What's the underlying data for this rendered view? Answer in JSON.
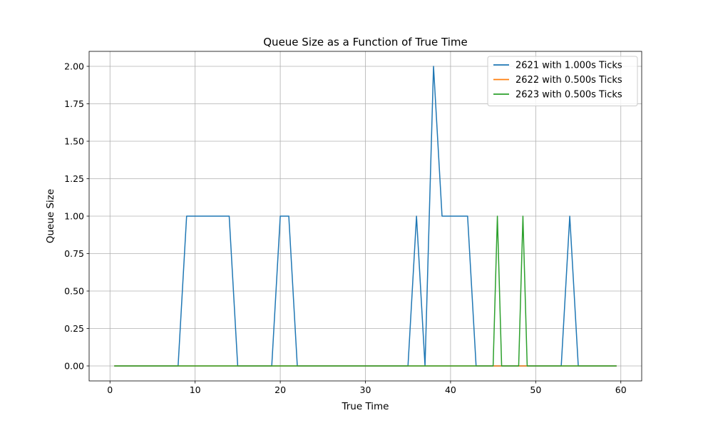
{
  "chart_data": {
    "type": "line",
    "title": "Queue Size as a Function of True Time",
    "xlabel": "True Time",
    "ylabel": "Queue Size",
    "xlim": [
      -2.45,
      62.45
    ],
    "ylim": [
      -0.1,
      2.1
    ],
    "xticks": [
      0,
      10,
      20,
      30,
      40,
      50,
      60
    ],
    "yticks": [
      0.0,
      0.25,
      0.5,
      0.75,
      1.0,
      1.25,
      1.5,
      1.75,
      2.0
    ],
    "xtick_labels": [
      "0",
      "10",
      "20",
      "30",
      "40",
      "50",
      "60"
    ],
    "ytick_labels": [
      "0.00",
      "0.25",
      "0.50",
      "0.75",
      "1.00",
      "1.25",
      "1.50",
      "1.75",
      "2.00"
    ],
    "grid": true,
    "legend_position": "top-right",
    "series": [
      {
        "name": "2621 with 1.000s Ticks",
        "color": "#1f77b4",
        "x": [
          0.5,
          8,
          9,
          14,
          15,
          19,
          20,
          21,
          22,
          35,
          36,
          37,
          38,
          39,
          42,
          43,
          53,
          54,
          55,
          59.5
        ],
        "y": [
          0,
          0,
          1,
          1,
          0,
          0,
          1,
          1,
          0,
          0,
          1,
          0,
          2,
          1,
          1,
          0,
          0,
          1,
          0,
          0
        ]
      },
      {
        "name": "2622 with 0.500s Ticks",
        "color": "#ff7f0e",
        "x": [
          0.5,
          59.5
        ],
        "y": [
          0,
          0
        ]
      },
      {
        "name": "2623 with 0.500s Ticks",
        "color": "#2ca02c",
        "x": [
          0.5,
          45,
          45.5,
          46,
          48,
          48.5,
          49,
          59.5
        ],
        "y": [
          0,
          0,
          1,
          0,
          0,
          1,
          0,
          0
        ]
      }
    ]
  }
}
